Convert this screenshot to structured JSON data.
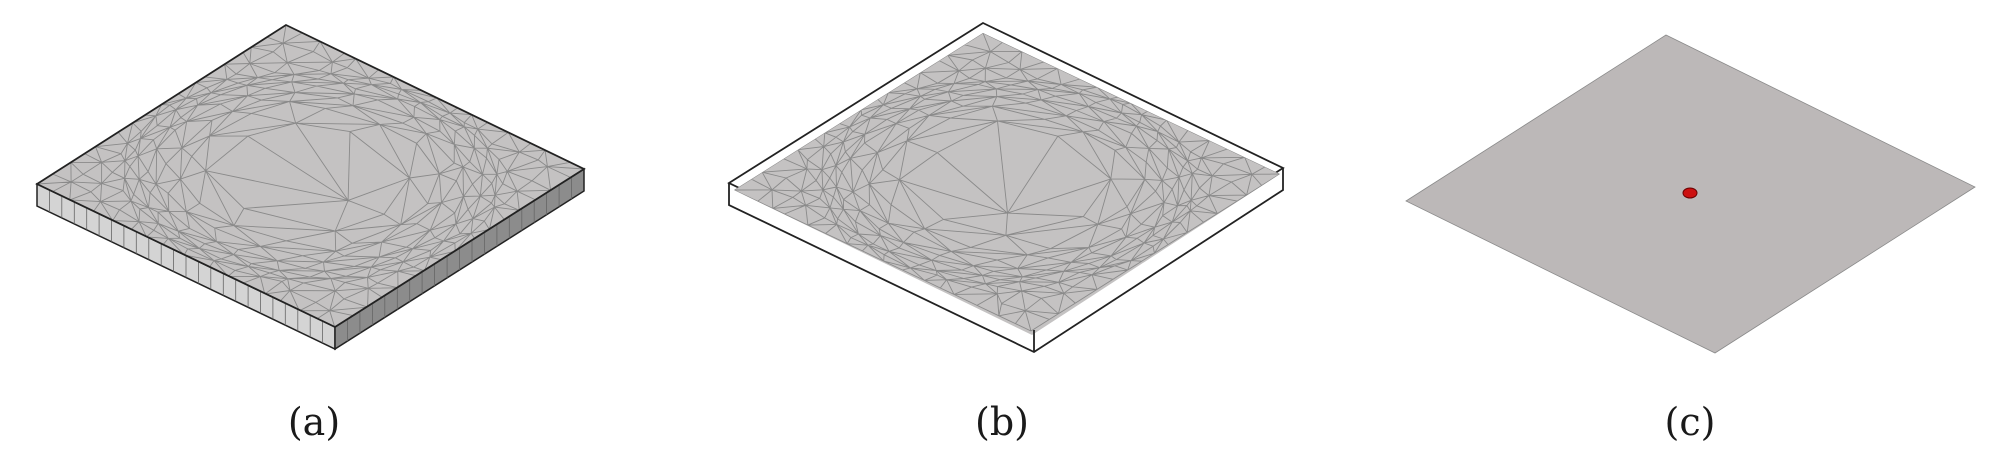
{
  "panels": [
    {
      "caption": "(a)",
      "description_name": "solid-plate-mesh"
    },
    {
      "caption": "(b)",
      "description_name": "midsurface-mesh-in-outline"
    },
    {
      "caption": "(c)",
      "description_name": "plane-with-source-point"
    }
  ],
  "colors": {
    "mesh_fill": "#bdbdbd",
    "mesh_line": "#888888",
    "top_fill": "#c4c2c2",
    "side_front": "#d4d4d4",
    "side_right": "#8c8c8c",
    "outline": "#222222",
    "plane_fill": "#bcb8b8",
    "point": "#cc1010"
  }
}
